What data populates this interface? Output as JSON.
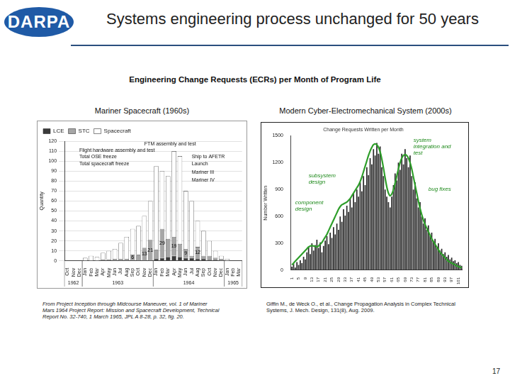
{
  "slide": {
    "logo": "DARPA",
    "title": "Systems engineering process unchanged for 50 years",
    "subtitle": "Engineering Change Requests (ECRs) per Month of Program Life",
    "page": 17
  },
  "chart_data": [
    {
      "type": "bar",
      "caption": "Mariner Spacecraft (1960s)",
      "source": "From Project Inception through Midcourse Maneuver, vol. 1 of Mariner Mars 1964 Project Report: Mission and Spacecraft Development, Technical Report No. 32-740, 1 March 1965, JPL A 8-28, p. 32, fig. 20.",
      "y_label": "Quantity",
      "categories": [
        "Oct",
        "Nov",
        "Dec",
        "Jan",
        "Feb",
        "Mar",
        "Apr",
        "May",
        "Jun",
        "Jul",
        "Aug",
        "Sep",
        "Oct",
        "Nov",
        "Dec",
        "Jan",
        "Feb",
        "Mar",
        "Apr",
        "May",
        "Jun",
        "Jul",
        "Aug",
        "Sep",
        "Oct",
        "Nov",
        "Dec",
        "Jan",
        "Feb",
        "Mar"
      ],
      "category_groups": [
        {
          "label": "1962",
          "start": 0,
          "end": 2
        },
        {
          "label": "1963",
          "start": 3,
          "end": 14
        },
        {
          "label": "1964",
          "start": 15,
          "end": 26
        },
        {
          "label": "1965",
          "start": 27,
          "end": 29
        }
      ],
      "series": [
        {
          "name": "LCE",
          "color": "#3a3a3a",
          "values": [
            0,
            0,
            0,
            0,
            0,
            0,
            0,
            0,
            0,
            0,
            0,
            0,
            0,
            0,
            0,
            2,
            3,
            4,
            5,
            4,
            3,
            3,
            2,
            2,
            1,
            1,
            0,
            0,
            0,
            0
          ]
        },
        {
          "name": "STC",
          "color": "#a6a6a6",
          "values": [
            0,
            0,
            0,
            0,
            0,
            0,
            1,
            1,
            2,
            2,
            2,
            6,
            6,
            13,
            21,
            9,
            29,
            18,
            19,
            13,
            9,
            2,
            12,
            3,
            4,
            2,
            2,
            0,
            0,
            0
          ],
          "value_labels": [
            null,
            null,
            null,
            null,
            null,
            null,
            null,
            null,
            null,
            null,
            null,
            "6",
            null,
            "13",
            "21",
            null,
            "29",
            null,
            "19",
            null,
            "9",
            null,
            "12",
            null,
            null,
            null,
            null,
            null,
            null,
            null
          ]
        },
        {
          "name": "Spacecraft",
          "color": "#ffffff",
          "values": [
            0,
            0,
            0,
            3,
            5,
            4,
            7,
            9,
            10,
            16,
            22,
            26,
            29,
            32,
            39,
            84,
            58,
            63,
            86,
            88,
            58,
            55,
            26,
            25,
            15,
            7,
            3,
            2,
            0,
            0
          ]
        }
      ],
      "stacked": true,
      "ylim": [
        0,
        120
      ],
      "yticks": [
        0,
        10,
        20,
        30,
        40,
        50,
        60,
        70,
        80,
        90,
        100,
        110,
        120
      ],
      "grid": true,
      "legend": "upper left",
      "annotations": [
        {
          "text": "FTM assembly and test",
          "at": 13,
          "y": 117
        },
        {
          "text": "Flight hardware assembly and test",
          "at": 2,
          "y": 111
        },
        {
          "text": "Total OSE freeze",
          "at": 2,
          "y": 104
        },
        {
          "text": "Total spacecraft freeze",
          "at": 2,
          "y": 97
        },
        {
          "text": "Ship to AFETR",
          "at": 21,
          "y": 104
        },
        {
          "text": "Launch",
          "at": 21,
          "y": 97
        },
        {
          "text": "Mariner III",
          "at": 21,
          "y": 89
        },
        {
          "text": "Mariner IV",
          "at": 21,
          "y": 81
        }
      ]
    },
    {
      "type": "bar",
      "caption": "Modern Cyber-Electromechanical System (2000s)",
      "source": "Giffin M., de Weck O., et al., Change Propagation Analysis in Complex Technical Systems, J. Mech. Design, 131(8), Aug. 2009.",
      "title": "Change Requests Written per Month",
      "y_label": "Number Written",
      "categories": [
        1,
        null,
        null,
        null,
        5,
        null,
        null,
        null,
        9,
        null,
        null,
        null,
        13,
        null,
        null,
        null,
        17,
        null,
        null,
        null,
        21,
        null,
        null,
        null,
        25,
        null,
        null,
        null,
        29,
        null,
        null,
        null,
        33,
        null,
        null,
        null,
        37,
        null,
        null,
        null,
        41,
        null,
        null,
        null,
        45,
        null,
        null,
        null,
        49,
        null,
        null,
        null,
        53,
        null,
        null,
        null,
        57,
        null,
        null,
        null,
        61,
        null,
        null,
        null,
        65,
        null,
        null,
        null,
        69,
        null,
        null,
        null,
        73,
        null,
        null,
        null,
        77,
        null,
        null,
        null,
        81,
        null,
        null,
        null,
        85,
        null,
        null,
        null,
        89,
        null,
        null,
        null,
        93,
        null,
        null,
        null,
        97,
        null,
        null,
        null,
        101,
        null,
        null
      ],
      "series": [
        {
          "type": "bar",
          "color": "#2b2b2b",
          "values": [
            40,
            70,
            30,
            90,
            60,
            110,
            80,
            150,
            120,
            200,
            260,
            180,
            300,
            220,
            280,
            340,
            250,
            310,
            200,
            270,
            330,
            380,
            290,
            420,
            360,
            480,
            400,
            520,
            450,
            600,
            540,
            680,
            610,
            720,
            650,
            800,
            700,
            860,
            760,
            900,
            820,
            980,
            880,
            1050,
            950,
            1150,
            1060,
            1250,
            1180,
            1350,
            1280,
            1420,
            1300,
            1380,
            1150,
            1050,
            900,
            820,
            760,
            700,
            820,
            950,
            1080,
            1000,
            1200,
            1120,
            1300,
            1180,
            1350,
            1250,
            1150,
            1280,
            1050,
            900,
            980,
            800,
            700,
            760,
            600,
            520,
            580,
            450,
            500,
            380,
            420,
            320,
            350,
            260,
            300,
            220,
            240,
            180,
            200,
            150,
            170,
            120,
            140,
            100,
            110,
            80,
            90,
            60,
            50
          ]
        },
        {
          "type": "line",
          "color": "#2e9e2a",
          "line_style": "solid",
          "values": [
            60,
            80,
            100,
            120,
            140,
            160,
            180,
            200,
            220,
            240,
            260,
            270,
            275,
            270,
            265,
            260,
            270,
            290,
            310,
            340,
            370,
            400,
            440,
            480,
            520,
            560,
            600,
            640,
            680,
            710,
            730,
            740,
            750,
            760,
            780,
            800,
            830,
            860,
            890,
            920,
            950,
            990,
            1040,
            1100,
            1160,
            1220,
            1280,
            1330,
            1370,
            1400,
            1410,
            1400,
            1370,
            1320,
            1240,
            1140,
            1030,
            930,
            860,
            830,
            850,
            900,
            970,
            1050,
            1130,
            1200,
            1250,
            1280,
            1290,
            1280,
            1250,
            1200,
            1130,
            1040,
            950,
            860,
            770,
            690,
            620,
            560,
            510,
            470,
            430,
            390,
            350,
            320,
            290,
            260,
            230,
            200,
            180,
            160,
            140,
            120,
            100,
            90,
            80,
            70,
            60,
            50,
            40,
            35,
            30
          ]
        }
      ],
      "ylim": [
        0,
        1500
      ],
      "yticks": [
        0,
        300,
        600,
        900,
        1200,
        1500
      ],
      "grid": false,
      "annotations": [
        {
          "text": "component design",
          "at": 2,
          "y": 750
        },
        {
          "text": "subsystem design",
          "at": 10,
          "y": 1050
        },
        {
          "text": "system integration and test",
          "at": 73,
          "y": 1450
        },
        {
          "text": "bug fixes",
          "at": 82,
          "y": 900
        }
      ]
    }
  ]
}
